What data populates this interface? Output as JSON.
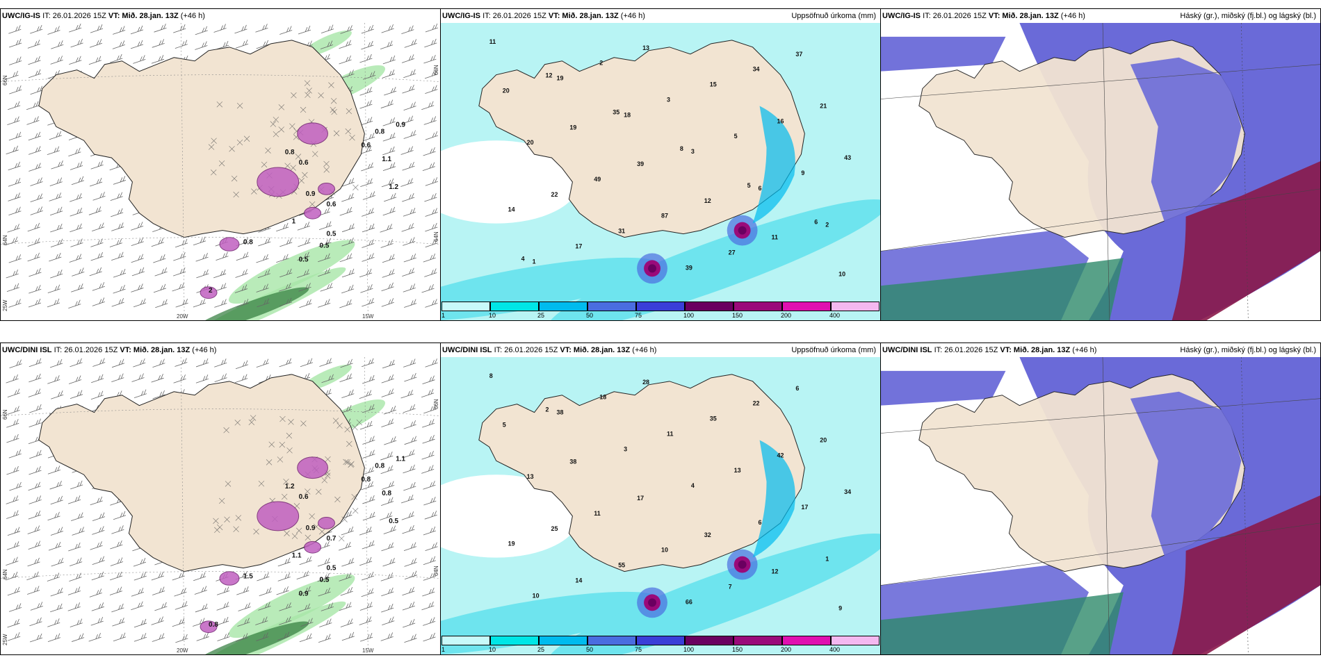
{
  "panels": [
    {
      "model": "UWC/IG-IS",
      "it": "IT: 26.01.2026 15Z",
      "vt_label": "VT:",
      "vt": "Mið. 28.jan. 13Z",
      "lead": "(+46 h)",
      "title": "",
      "axes": {
        "lat1": "66N",
        "lat2": "64N",
        "lat3": "25W",
        "lon1": "20W",
        "lon2": "15W",
        "r1": "66N",
        "r2": "64N"
      },
      "values": [
        "0.5",
        "0.5",
        "0.5",
        "0.9",
        "0.8",
        "0.9",
        "0.6",
        "0.8",
        "1.2",
        "0.6",
        "1.1",
        "0.6",
        "1",
        "0.8",
        "2"
      ]
    },
    {
      "model": "UWC/IG-IS",
      "it": "IT: 26.01.2026 15Z",
      "vt_label": "VT:",
      "vt": "Mið. 28.jan. 13Z",
      "lead": "(+46 h)",
      "title": "Uppsöfnuð úrkoma (mm)",
      "values": [
        "11",
        "19",
        "18",
        "3",
        "6",
        "2",
        "1",
        "2",
        "3",
        "5",
        "9",
        "14",
        "17",
        "13",
        "15",
        "16",
        "43",
        "22",
        "31",
        "39",
        "34",
        "21",
        "20",
        "49",
        "87",
        "27",
        "37",
        "20",
        "19",
        "39",
        "12",
        "11",
        "10",
        "12",
        "35",
        "8",
        "5",
        "6",
        "4"
      ]
    },
    {
      "model": "UWC/IG-IS",
      "it": "IT: 26.01.2026 15Z",
      "vt_label": "VT:",
      "vt": "Mið. 28.jan. 13Z",
      "lead": "(+46 h)",
      "title": "Háský (gr.), miðský (fj.bl.) og lágský (bl.)"
    },
    {
      "model": "UWC/DINI ISL",
      "it": "IT: 26.01.2026 15Z",
      "vt_label": "VT:",
      "vt": "Mið. 28.jan. 13Z",
      "lead": "(+46 h)",
      "title": "",
      "axes": {
        "lat1": "66N",
        "lat2": "64N",
        "lat3": "25W",
        "lon1": "20W",
        "lon2": "15W",
        "r1": "66N",
        "r2": "64N"
      },
      "values": [
        "0.5",
        "0.9",
        "0.5",
        "1.1",
        "0.8",
        "0.9",
        "0.6",
        "1.2",
        "0.5",
        "0.8",
        "0.8",
        "0.7",
        "1.1",
        "1.5",
        "0.8",
        "0.5"
      ]
    },
    {
      "model": "UWC/DINI ISL",
      "it": "IT: 26.01.2026 15Z",
      "vt_label": "VT:",
      "vt": "Mið. 28.jan. 13Z",
      "lead": "(+46 h)",
      "title": "Uppsöfnuð úrkoma (mm)",
      "values": [
        "8",
        "38",
        "3",
        "4",
        "6",
        "1",
        "10",
        "18",
        "11",
        "13",
        "17",
        "19",
        "14",
        "28",
        "35",
        "42",
        "34",
        "25",
        "55",
        "66",
        "22",
        "20",
        "13",
        "11",
        "10",
        "7",
        "6",
        "5",
        "38",
        "17",
        "32",
        "12",
        "9",
        "2"
      ]
    },
    {
      "model": "UWC/DINI ISL",
      "it": "IT: 26.01.2026 15Z",
      "vt_label": "VT:",
      "vt": "Mið. 28.jan. 13Z",
      "lead": "(+46 h)",
      "title": "Háský (gr.), miðský (fj.bl.) og lágský (bl.)"
    }
  ],
  "colorbar": {
    "colors": [
      "#c8fafa",
      "#00e6e6",
      "#00bbee",
      "#4a6de0",
      "#3a3fd8",
      "#6a0060",
      "#9a0a7a",
      "#e010b0",
      "#f4b8f0"
    ],
    "labels": [
      "1",
      "10",
      "25",
      "50",
      "75",
      "100",
      "150",
      "200",
      "400"
    ]
  },
  "colors": {
    "land": "#f2e4d2",
    "precipA": "#b8f4f4",
    "precipB": "#6ee4ee",
    "cloudHigh": "#6a6ad8",
    "cloudLow": "#8a1a4a",
    "cloudMid": "#2e8a6a",
    "green": "#a8e6a8"
  }
}
